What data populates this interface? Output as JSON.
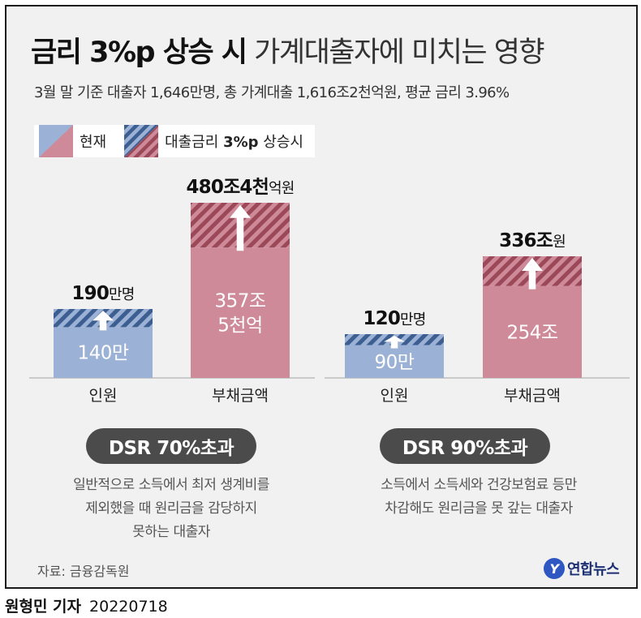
{
  "title": {
    "bold": "금리 3%p 상승 시",
    "light": "가계대출자에 미치는 영향"
  },
  "subtitle": "3월 말 기준 대출자 1,646만명, 총 가계대출 1,616조2천억원, 평균 금리 3.96%",
  "legend": {
    "current": "현재",
    "rise_prefix": "대출금리 ",
    "rise_bold": "3%p",
    "rise_suffix": " 상승시"
  },
  "colors": {
    "blue": "#9bb1d5",
    "blue_dark": "#3d5e90",
    "pink": "#cf8a99",
    "pink_dark": "#9b4959",
    "pill": "#4b4b4b",
    "frame_bg": "#f1f1f1"
  },
  "chart_data": [
    {
      "type": "bar",
      "categories": [
        "인원",
        "부채금액"
      ],
      "series": [
        {
          "name": "현재",
          "values": [
            140,
            3575
          ]
        },
        {
          "name": "대출금리 3%p 상승시",
          "values": [
            190,
            4804
          ]
        }
      ],
      "units": [
        "만명",
        "억원"
      ],
      "inner_labels": [
        "140만",
        "357조\n5천억"
      ],
      "top_labels": [
        {
          "num": "190",
          "unit": "만명"
        },
        {
          "num": "480조4천",
          "unit": "억원"
        }
      ],
      "badge": "DSR 70%초과",
      "description": [
        "일반적으로 소득에서 최저 생계비를",
        "제외했을 때 원리금을 감당하지",
        "못하는 대출자"
      ]
    },
    {
      "type": "bar",
      "categories": [
        "인원",
        "부채금액"
      ],
      "series": [
        {
          "name": "현재",
          "values": [
            90,
            254
          ]
        },
        {
          "name": "대출금리 3%p 상승시",
          "values": [
            120,
            336
          ]
        }
      ],
      "units": [
        "만명",
        "조원"
      ],
      "inner_labels": [
        "90만",
        "254조"
      ],
      "top_labels": [
        {
          "num": "120",
          "unit": "만명"
        },
        {
          "num": "336조",
          "unit": "원"
        }
      ],
      "badge": "DSR 90%초과",
      "description": [
        "소득에서 소득세와 건강보험료 등만",
        "차감해도 원리금을 못 갚는 대출자"
      ]
    }
  ],
  "source": "자료: 금융감독원",
  "logo": "연합뉴스",
  "byline": {
    "reporter": "원형민 기자",
    "date": "20220718"
  }
}
